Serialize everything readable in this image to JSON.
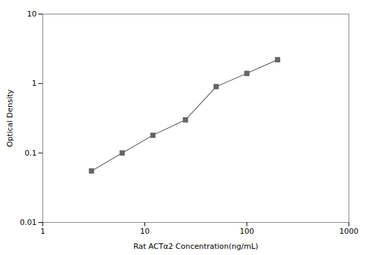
{
  "chart_data": {
    "type": "line",
    "x": [
      3,
      6,
      12,
      25,
      50,
      100,
      200
    ],
    "values": [
      0.055,
      0.1,
      0.18,
      0.3,
      0.9,
      1.4,
      2.2
    ],
    "xlabel": "Rat ACTα2 Concentration(ng/mL)",
    "ylabel": "Optical Density",
    "xlim": [
      1,
      1000
    ],
    "ylim": [
      0.01,
      10
    ],
    "xticks": [
      1,
      10,
      100,
      1000
    ],
    "yticks": [
      0.01,
      0.1,
      1,
      10
    ],
    "log": true,
    "color": "#666666",
    "marker": "square",
    "line_style": "solid"
  }
}
